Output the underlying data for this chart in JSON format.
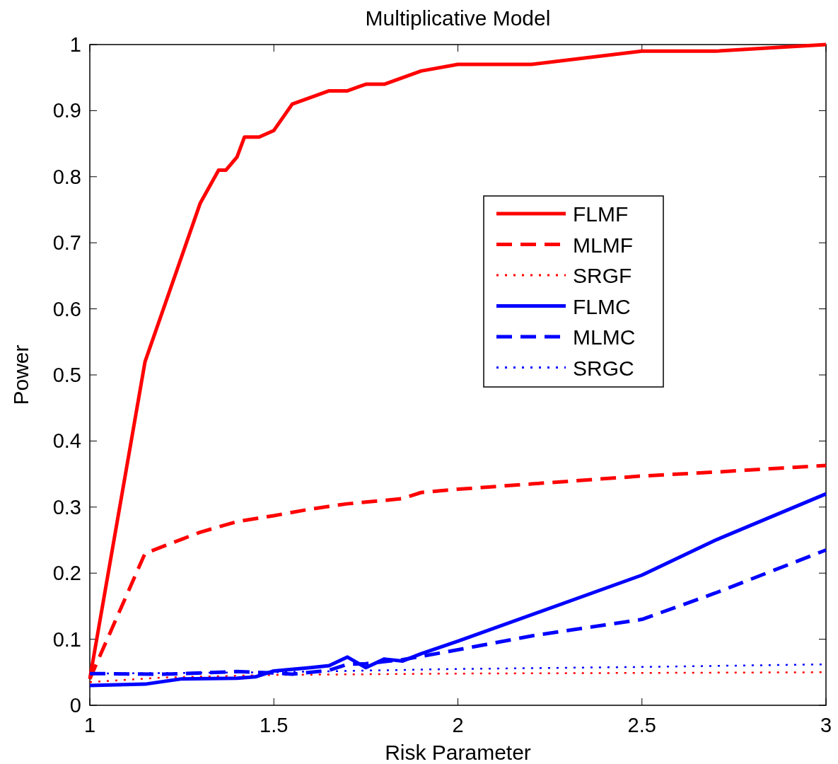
{
  "chart_data": {
    "type": "line",
    "title": "Multiplicative Model",
    "xlabel": "Risk Parameter",
    "ylabel": "Power",
    "xlim": [
      1,
      3
    ],
    "xticks": [
      1,
      1.5,
      2,
      2.5,
      3
    ],
    "ylim": [
      0,
      1
    ],
    "yticks": [
      0,
      0.1,
      0.2,
      0.3,
      0.4,
      0.5,
      0.6,
      0.7,
      0.8,
      0.9,
      1
    ],
    "grid": false,
    "legend": "right",
    "marker": "none",
    "series": [
      {
        "name": "FLMF",
        "color": "#ff0000",
        "line_style": "solid",
        "x": [
          1,
          1.15,
          1.3,
          1.35,
          1.37,
          1.4,
          1.42,
          1.46,
          1.5,
          1.55,
          1.65,
          1.7,
          1.75,
          1.8,
          1.9,
          2,
          2.2,
          2.5,
          2.7,
          3
        ],
        "values": [
          0.04,
          0.52,
          0.76,
          0.81,
          0.81,
          0.83,
          0.86,
          0.86,
          0.87,
          0.91,
          0.93,
          0.93,
          0.94,
          0.94,
          0.96,
          0.97,
          0.97,
          0.99,
          0.99,
          1.0
        ]
      },
      {
        "name": "MLMF",
        "color": "#ff0000",
        "line_style": "dashed",
        "x": [
          1,
          1.15,
          1.3,
          1.4,
          1.5,
          1.6,
          1.7,
          1.8,
          1.85,
          1.9,
          2,
          2.2,
          2.5,
          2.7,
          3
        ],
        "values": [
          0.04,
          0.23,
          0.262,
          0.278,
          0.287,
          0.297,
          0.305,
          0.31,
          0.313,
          0.322,
          0.327,
          0.335,
          0.347,
          0.353,
          0.363
        ]
      },
      {
        "name": "SRGF",
        "color": "#ff0000",
        "line_style": "dotted",
        "x": [
          1,
          1.2,
          1.5,
          2,
          2.5,
          3
        ],
        "values": [
          0.035,
          0.042,
          0.046,
          0.048,
          0.049,
          0.05
        ]
      },
      {
        "name": "FLMC",
        "color": "#0000ff",
        "line_style": "solid",
        "x": [
          1,
          1.15,
          1.25,
          1.4,
          1.45,
          1.5,
          1.6,
          1.65,
          1.7,
          1.75,
          1.8,
          1.85,
          1.9,
          2,
          2.5,
          2.7,
          3
        ],
        "values": [
          0.03,
          0.032,
          0.04,
          0.041,
          0.043,
          0.052,
          0.057,
          0.06,
          0.073,
          0.057,
          0.07,
          0.067,
          0.078,
          0.097,
          0.197,
          0.25,
          0.32
        ]
      },
      {
        "name": "MLMC",
        "color": "#0000ff",
        "line_style": "dashed",
        "x": [
          1,
          1.2,
          1.4,
          1.5,
          1.55,
          1.65,
          1.7,
          1.75,
          1.8,
          1.85,
          1.9,
          2,
          2.2,
          2.5,
          2.7,
          3
        ],
        "values": [
          0.048,
          0.047,
          0.051,
          0.049,
          0.047,
          0.053,
          0.062,
          0.063,
          0.066,
          0.069,
          0.074,
          0.084,
          0.105,
          0.13,
          0.17,
          0.235
        ]
      },
      {
        "name": "SRGC",
        "color": "#0000ff",
        "line_style": "dotted",
        "x": [
          1,
          1.5,
          2,
          2.5,
          3
        ],
        "values": [
          0.048,
          0.05,
          0.055,
          0.058,
          0.062
        ]
      }
    ]
  }
}
